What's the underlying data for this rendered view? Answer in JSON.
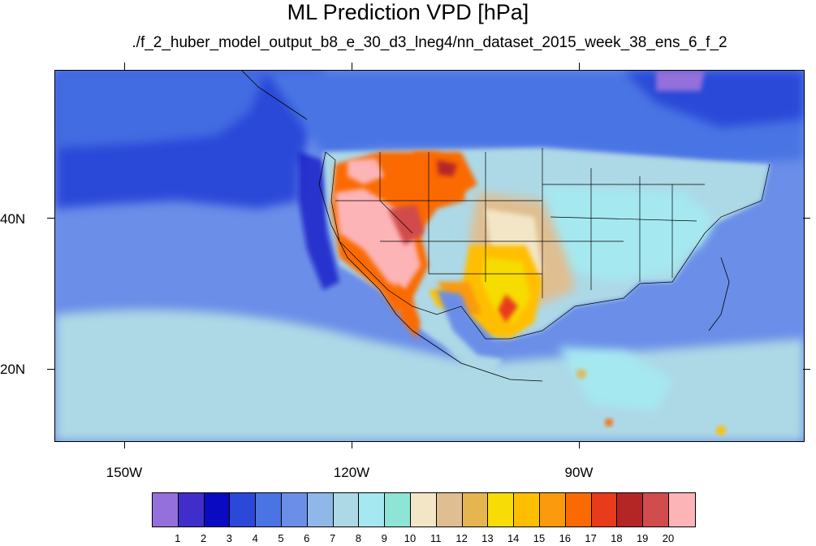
{
  "header": {
    "title": "ML Prediction VPD [hPa]",
    "subtitle": "./f_2_huber_model_output_b8_e_30_d3_lneg4/nn_dataset_2015_week_38_ens_6_f_2"
  },
  "axes": {
    "lat_labels": [
      "40N",
      "20N"
    ],
    "lon_labels": [
      "150W",
      "120W",
      "90W"
    ]
  },
  "colorbar": {
    "labels": [
      "1",
      "2",
      "3",
      "4",
      "5",
      "6",
      "7",
      "8",
      "9",
      "10",
      "11",
      "12",
      "13",
      "14",
      "15",
      "16",
      "17",
      "18",
      "19",
      "20"
    ],
    "colors": [
      "#9370db",
      "#3f2ec9",
      "#0a0ac2",
      "#2c48d8",
      "#4a74e4",
      "#6b8ee8",
      "#8fb8e8",
      "#add8e6",
      "#a5e8f0",
      "#8ee5d5",
      "#f2e6c6",
      "#dfbe91",
      "#e5b550",
      "#f7dc06",
      "#ffbf00",
      "#fb9a0c",
      "#fa6a00",
      "#e83b1b",
      "#b42525",
      "#d14c4c",
      "#fdb4b7"
    ]
  },
  "map": {
    "ocean_color": "#6b8ee8",
    "north_pacific_color": "#2c48d8",
    "southern_sea_color": "#add8e6"
  }
}
